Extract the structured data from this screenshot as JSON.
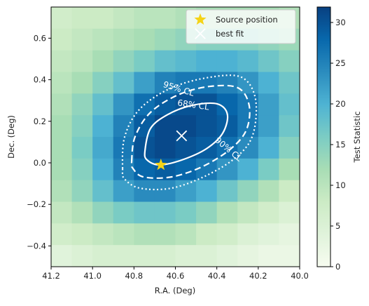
{
  "chart_data": {
    "type": "heatmap",
    "xlabel": "R.A. (Deg)",
    "ylabel": "Dec. (Deg)",
    "xlim": [
      41.2,
      40.0
    ],
    "ylim": [
      -0.5,
      0.75
    ],
    "xticks": [
      41.2,
      {
        "value": 41.0,
        "label": "41.0"
      },
      40.8,
      40.6,
      40.4,
      40.2,
      {
        "value": 40.0,
        "label": "40.0"
      }
    ],
    "yticks": [
      {
        "value": -0.4,
        "label": "−0.4"
      },
      {
        "value": -0.2,
        "label": "−0.2"
      },
      {
        "value": 0.0,
        "label": "0.0"
      },
      0.2,
      0.4,
      0.6
    ],
    "z_origin": "upper",
    "z": [
      [
        7,
        8,
        8,
        9,
        10,
        10,
        11,
        12,
        12,
        12,
        12,
        11
      ],
      [
        8,
        9,
        10,
        11,
        12,
        13,
        14,
        15,
        15,
        15,
        14,
        13
      ],
      [
        9,
        10,
        12,
        14,
        16,
        18,
        19,
        20,
        20,
        19,
        17,
        15
      ],
      [
        10,
        12,
        15,
        18,
        22,
        25,
        26,
        26,
        25,
        23,
        20,
        17
      ],
      [
        11,
        14,
        18,
        23,
        27,
        29,
        30,
        30,
        28,
        26,
        22,
        18
      ],
      [
        12,
        15,
        20,
        25,
        29,
        31,
        31,
        30,
        29,
        26,
        22,
        17
      ],
      [
        12,
        16,
        21,
        26,
        30,
        31,
        30,
        29,
        27,
        24,
        20,
        15
      ],
      [
        12,
        15,
        20,
        25,
        28,
        29,
        28,
        26,
        23,
        20,
        16,
        12
      ],
      [
        11,
        14,
        18,
        22,
        24,
        24,
        22,
        20,
        17,
        14,
        11,
        8
      ],
      [
        9,
        11,
        14,
        16,
        17,
        17,
        16,
        14,
        11,
        9,
        7,
        5
      ],
      [
        7,
        8,
        9,
        10,
        11,
        11,
        10,
        8,
        7,
        5,
        4,
        3
      ],
      [
        4,
        5,
        6,
        6,
        6,
        6,
        5,
        5,
        4,
        3,
        2,
        2
      ]
    ],
    "colorscale": [
      "#f7fcf0",
      "#e0f3db",
      "#ccebc5",
      "#a8ddb5",
      "#7bccc4",
      "#4eb3d3",
      "#2b8cbe",
      "#0868ac",
      "#084081"
    ],
    "colorbar_label": "Test Statistic",
    "clim": [
      0,
      31.9
    ],
    "cticks": [
      0,
      5,
      10,
      15,
      20,
      25,
      30
    ],
    "contours": [
      {
        "label": "68% CL",
        "style": "solid",
        "ra": [
          40.747,
          40.72,
          40.636,
          40.518,
          40.399,
          40.349,
          40.372,
          40.45,
          40.568,
          40.676,
          40.737
        ],
        "dec": [
          0.057,
          0.166,
          0.233,
          0.277,
          0.284,
          0.233,
          0.142,
          0.068,
          0.014,
          -0.01,
          0.014
        ]
      },
      {
        "label": "90% CL",
        "style": "dashed",
        "ra": [
          40.811,
          40.795,
          40.72,
          40.585,
          40.433,
          40.298,
          40.244,
          40.257,
          40.332,
          40.467,
          40.619,
          40.754,
          40.805
        ],
        "dec": [
          0.007,
          0.125,
          0.243,
          0.328,
          0.368,
          0.361,
          0.277,
          0.159,
          0.068,
          -0.017,
          -0.068,
          -0.068,
          -0.027
        ]
      },
      {
        "label": "95% CL",
        "style": "dotted",
        "ra": [
          40.855,
          40.845,
          40.771,
          40.619,
          40.433,
          40.281,
          40.214,
          40.224,
          40.298,
          40.45,
          40.619,
          40.771,
          40.845
        ],
        "dec": [
          -0.027,
          0.125,
          0.26,
          0.361,
          0.412,
          0.412,
          0.311,
          0.142,
          0.034,
          -0.061,
          -0.122,
          -0.122,
          -0.078
        ]
      }
    ],
    "markers": [
      {
        "name": "Source position",
        "symbol": "star",
        "color": "#f5d316",
        "ra": 40.67,
        "dec": -0.01
      },
      {
        "name": "best fit",
        "symbol": "x",
        "color": "#ffffff",
        "ra": 40.57,
        "dec": 0.13
      }
    ],
    "legend": "upper right"
  }
}
